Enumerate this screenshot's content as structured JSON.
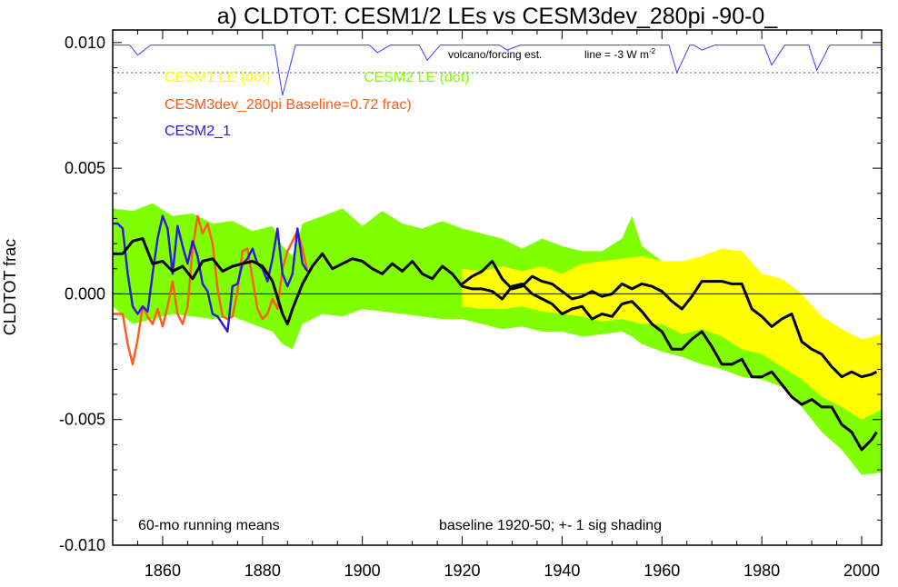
{
  "chart_data": {
    "type": "line",
    "title": "a) CLDTOT: CESM1/2 LEs vs CESM3dev_280pi -90-0_",
    "ylabel": "CLDTOT frac",
    "xlabel": "",
    "xlim": [
      1850,
      2004
    ],
    "ylim": [
      -0.01,
      0.0105
    ],
    "x_ticks": [
      1860,
      1880,
      1900,
      1920,
      1940,
      1960,
      1980,
      2000
    ],
    "x_tick_labels": [
      "1860",
      "1880",
      "1900",
      "1920",
      "1940",
      "1960",
      "1980",
      "2000"
    ],
    "y_ticks": [
      -0.01,
      -0.005,
      0.0,
      0.005,
      0.01
    ],
    "y_tick_labels": [
      "-0.010",
      "-0.005",
      "0.000",
      "0.005",
      "0.010"
    ],
    "grid": false,
    "legend_position": "top-left",
    "legend": [
      {
        "label": "CESM1 LE (dot)",
        "color": "#ffff00"
      },
      {
        "label": "CESM2 LE (dot)",
        "color": "#7fff00"
      },
      {
        "label": "CESM3dev_280pi Baseline=0.72 frac)",
        "color": "#ff5a1a"
      },
      {
        "label": "CESM2_1",
        "color": "#2a1adc"
      }
    ],
    "annotations": {
      "volcano_label": "volcano/forcing est.",
      "line_label_prefix": "line = -3 W m",
      "line_label_sup": "-2",
      "bottom_left": "60-mo running means",
      "bottom_right": "baseline 1920-50; +- 1 sig shading"
    },
    "reference_line_y": 0.0,
    "volcano_line_y": 0.0088,
    "volcano_baseline_y": 0.0099,
    "volcano_dips": [
      {
        "x": 1855,
        "y": 0.0095
      },
      {
        "x": 1884,
        "y": 0.0079
      },
      {
        "x": 1903,
        "y": 0.0096
      },
      {
        "x": 1913,
        "y": 0.0093
      },
      {
        "x": 1929,
        "y": 0.0097
      },
      {
        "x": 1963,
        "y": 0.0088
      },
      {
        "x": 1968,
        "y": 0.0097
      },
      {
        "x": 1982,
        "y": 0.0091
      },
      {
        "x": 1991,
        "y": 0.0089
      }
    ],
    "series": [
      {
        "name": "CESM2 LE (dot)",
        "kind": "band",
        "color": "#7fff00",
        "x": [
          1850,
          1854,
          1858,
          1862,
          1866,
          1870,
          1874,
          1878,
          1882,
          1884,
          1886,
          1888,
          1892,
          1896,
          1900,
          1904,
          1908,
          1912,
          1916,
          1920,
          1924,
          1928,
          1932,
          1936,
          1940,
          1944,
          1948,
          1952,
          1954,
          1956,
          1960,
          1964,
          1968,
          1972,
          1976,
          1980,
          1984,
          1988,
          1992,
          1996,
          2000,
          2004
        ],
        "lower": [
          -0.0005,
          -0.0012,
          -0.001,
          -0.0008,
          -0.0009,
          -0.001,
          -0.0009,
          -0.0012,
          -0.0015,
          -0.002,
          -0.0022,
          -0.0012,
          -0.0008,
          -0.0009,
          -0.0006,
          -0.0007,
          -0.0008,
          -0.0009,
          -0.001,
          -0.001,
          -0.0012,
          -0.0014,
          -0.0013,
          -0.0015,
          -0.0015,
          -0.0017,
          -0.0016,
          -0.0015,
          -0.0017,
          -0.002,
          -0.0023,
          -0.0025,
          -0.0028,
          -0.003,
          -0.0033,
          -0.0034,
          -0.0037,
          -0.0045,
          -0.0055,
          -0.0062,
          -0.0072,
          -0.0071
        ],
        "upper": [
          0.0034,
          0.0033,
          0.0036,
          0.0031,
          0.0032,
          0.0028,
          0.0029,
          0.0025,
          0.0027,
          0.0019,
          0.0015,
          0.0028,
          0.0031,
          0.0034,
          0.0027,
          0.0033,
          0.0028,
          0.0026,
          0.0029,
          0.0026,
          0.0024,
          0.0022,
          0.0018,
          0.0022,
          0.0019,
          0.0017,
          0.0017,
          0.0022,
          0.0031,
          0.0019,
          0.0013,
          0.0009,
          0.0007,
          0.0005,
          0.0002,
          0.0,
          -0.0008,
          -0.0017,
          -0.0025,
          -0.0032,
          -0.0039,
          -0.0042
        ]
      },
      {
        "name": "CESM1 LE (dot)",
        "kind": "band",
        "color": "#ffff00",
        "x": [
          1920,
          1924,
          1928,
          1932,
          1936,
          1940,
          1944,
          1948,
          1952,
          1956,
          1960,
          1964,
          1968,
          1972,
          1976,
          1980,
          1984,
          1988,
          1992,
          1996,
          2000,
          2004
        ],
        "lower": [
          -0.0005,
          -0.0006,
          -0.0006,
          -0.0005,
          -0.0007,
          -0.0008,
          -0.0009,
          -0.0011,
          -0.001,
          -0.0012,
          -0.0012,
          -0.0016,
          -0.0014,
          -0.0017,
          -0.0022,
          -0.0024,
          -0.0029,
          -0.0034,
          -0.0041,
          -0.0045,
          -0.005,
          -0.0046
        ],
        "upper": [
          0.001,
          0.0009,
          0.0011,
          0.0009,
          0.0011,
          0.0008,
          0.0012,
          0.0013,
          0.0014,
          0.0015,
          0.0013,
          0.0013,
          0.0015,
          0.0018,
          0.0017,
          0.0008,
          0.0006,
          0.0,
          -0.0009,
          -0.0014,
          -0.0018,
          -0.0016
        ]
      },
      {
        "name": "CESM3dev_280pi Baseline=0.72 frac)",
        "kind": "line",
        "color": "#ff5a1a",
        "x": [
          1850,
          1852,
          1853,
          1854,
          1855,
          1856,
          1857,
          1858,
          1859,
          1860,
          1861,
          1862,
          1863,
          1864,
          1865,
          1866,
          1867,
          1868,
          1869,
          1870,
          1871,
          1872,
          1873,
          1874,
          1875,
          1876,
          1877,
          1878,
          1879,
          1880,
          1881,
          1882,
          1883,
          1884,
          1885,
          1886,
          1887,
          1888,
          1889
        ],
        "y": [
          -0.0008,
          -0.0008,
          -0.002,
          -0.0028,
          -0.0018,
          -0.0005,
          -0.0009,
          -0.0012,
          -0.0006,
          -0.0013,
          -0.0005,
          0.0005,
          -0.0008,
          -0.0012,
          -0.0005,
          0.0018,
          0.0031,
          0.0024,
          0.0028,
          0.002,
          0.0002,
          -0.0009,
          -0.001,
          -0.0009,
          0.0001,
          0.0017,
          0.0018,
          0.0006,
          -0.0006,
          -0.001,
          -0.0008,
          -0.0002,
          -0.0006,
          0.001,
          0.0017,
          0.0021,
          0.0025,
          0.0018,
          0.0009
        ]
      },
      {
        "name": "CESM2_1",
        "kind": "line",
        "color": "#2a1adc",
        "x": [
          1850,
          1851,
          1852,
          1853,
          1854,
          1855,
          1856,
          1857,
          1858,
          1859,
          1860,
          1861,
          1862,
          1863,
          1864,
          1865,
          1866,
          1867,
          1868,
          1869,
          1870,
          1871,
          1872,
          1873,
          1874,
          1875,
          1876,
          1877,
          1878,
          1879,
          1880,
          1881,
          1882,
          1883,
          1884,
          1885,
          1886,
          1887,
          1888,
          1889
        ],
        "y": [
          0.0028,
          0.0028,
          0.0026,
          0.0008,
          -0.0005,
          -0.0008,
          -0.0005,
          -0.0007,
          0.0008,
          0.0022,
          0.0031,
          0.0026,
          0.0008,
          0.0027,
          0.0019,
          0.0012,
          0.0021,
          0.0015,
          0.0004,
          0.0001,
          -0.0008,
          -0.0009,
          -0.0012,
          -0.0015,
          0.0003,
          0.0004,
          0.0012,
          0.0014,
          0.0018,
          0.0012,
          0.001,
          0.0005,
          0.0014,
          0.0026,
          0.0008,
          0.0003,
          0.0008,
          0.0026,
          0.0012,
          0.0009
        ]
      },
      {
        "name": "",
        "kind": "line",
        "color": "#000000",
        "x": [
          1850,
          1852,
          1854,
          1856,
          1858,
          1860,
          1862,
          1864,
          1866,
          1868,
          1870,
          1872,
          1874,
          1876,
          1878,
          1880,
          1882,
          1884,
          1885,
          1886,
          1888,
          1890,
          1892,
          1894,
          1896,
          1898,
          1900,
          1902,
          1904,
          1906,
          1908,
          1910,
          1912,
          1914,
          1916,
          1918,
          1920,
          1922,
          1924,
          1926,
          1928,
          1930,
          1932,
          1934,
          1936,
          1938,
          1940,
          1942,
          1944,
          1946,
          1948,
          1950,
          1952,
          1954,
          1956,
          1958,
          1960,
          1962,
          1964,
          1966,
          1968,
          1970,
          1972,
          1974,
          1976,
          1978,
          1980,
          1982,
          1984,
          1986,
          1988,
          1990,
          1992,
          1994,
          1996,
          1998,
          2000,
          2002,
          2003
        ],
        "y": [
          0.0016,
          0.0016,
          0.0021,
          0.0022,
          0.0012,
          0.0013,
          0.0009,
          0.0011,
          0.0006,
          0.0013,
          0.0014,
          0.0009,
          0.0011,
          0.0012,
          0.0013,
          0.0011,
          0.0005,
          -0.0008,
          -0.0012,
          -0.0006,
          0.0004,
          0.0011,
          0.0016,
          0.001,
          0.0012,
          0.0014,
          0.0013,
          0.001,
          0.0008,
          0.0012,
          0.0009,
          0.0013,
          0.0008,
          0.0006,
          0.0011,
          0.0008,
          0.0003,
          0.0002,
          0.0002,
          0.0001,
          -0.0002,
          0.0003,
          0.0004,
          0.0,
          -0.0002,
          -0.0004,
          -0.0008,
          -0.0006,
          -0.0005,
          -0.001,
          -0.0008,
          -0.0009,
          -0.0004,
          -0.0003,
          -0.0007,
          -0.0012,
          -0.0015,
          -0.0022,
          -0.0022,
          -0.0018,
          -0.0015,
          -0.0021,
          -0.0028,
          -0.0028,
          -0.0026,
          -0.0033,
          -0.0033,
          -0.0031,
          -0.0036,
          -0.0041,
          -0.0044,
          -0.0042,
          -0.0045,
          -0.0045,
          -0.0052,
          -0.0055,
          -0.0062,
          -0.0058,
          -0.0055
        ]
      },
      {
        "name": "",
        "kind": "line",
        "color": "#000000",
        "x": [
          1920,
          1922,
          1924,
          1926,
          1928,
          1930,
          1932,
          1934,
          1936,
          1938,
          1940,
          1942,
          1944,
          1946,
          1948,
          1950,
          1952,
          1954,
          1956,
          1958,
          1960,
          1962,
          1964,
          1966,
          1968,
          1970,
          1972,
          1974,
          1976,
          1978,
          1980,
          1982,
          1984,
          1986,
          1988,
          1990,
          1992,
          1994,
          1996,
          1998,
          2000,
          2002,
          2003
        ],
        "y": [
          0.0004,
          0.0007,
          0.0009,
          0.0013,
          0.0006,
          0.0002,
          0.0003,
          0.0007,
          0.0005,
          0.0004,
          0.0001,
          -0.0002,
          -0.0001,
          0.0001,
          -0.0001,
          0.0,
          0.0004,
          0.0002,
          0.0004,
          0.0003,
          0.0001,
          -0.0003,
          -0.0006,
          -0.0001,
          0.0005,
          0.0005,
          0.0005,
          0.0004,
          0.0004,
          -0.0006,
          -0.0009,
          -0.0013,
          -0.001,
          -0.0008,
          -0.0019,
          -0.0022,
          -0.0024,
          -0.0029,
          -0.0033,
          -0.0031,
          -0.0033,
          -0.0032,
          -0.0031
        ]
      }
    ]
  }
}
